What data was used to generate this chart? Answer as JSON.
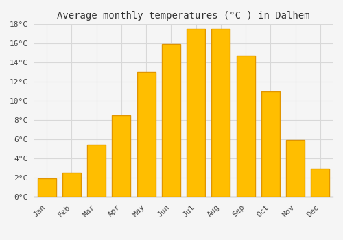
{
  "title": "Average monthly temperatures (°C ) in Dalhem",
  "months": [
    "Jan",
    "Feb",
    "Mar",
    "Apr",
    "May",
    "Jun",
    "Jul",
    "Aug",
    "Sep",
    "Oct",
    "Nov",
    "Dec"
  ],
  "values": [
    1.9,
    2.5,
    5.4,
    8.5,
    13.0,
    15.9,
    17.5,
    17.5,
    14.7,
    11.0,
    5.9,
    2.9
  ],
  "bar_color": "#FFBE00",
  "bar_edge_color": "#E09500",
  "background_color": "#f5f5f5",
  "plot_bg_color": "#f5f5f5",
  "grid_color": "#d8d8d8",
  "ylim": [
    0,
    18
  ],
  "yticks": [
    0,
    2,
    4,
    6,
    8,
    10,
    12,
    14,
    16,
    18
  ],
  "title_fontsize": 10,
  "tick_fontsize": 8,
  "font_family": "monospace"
}
